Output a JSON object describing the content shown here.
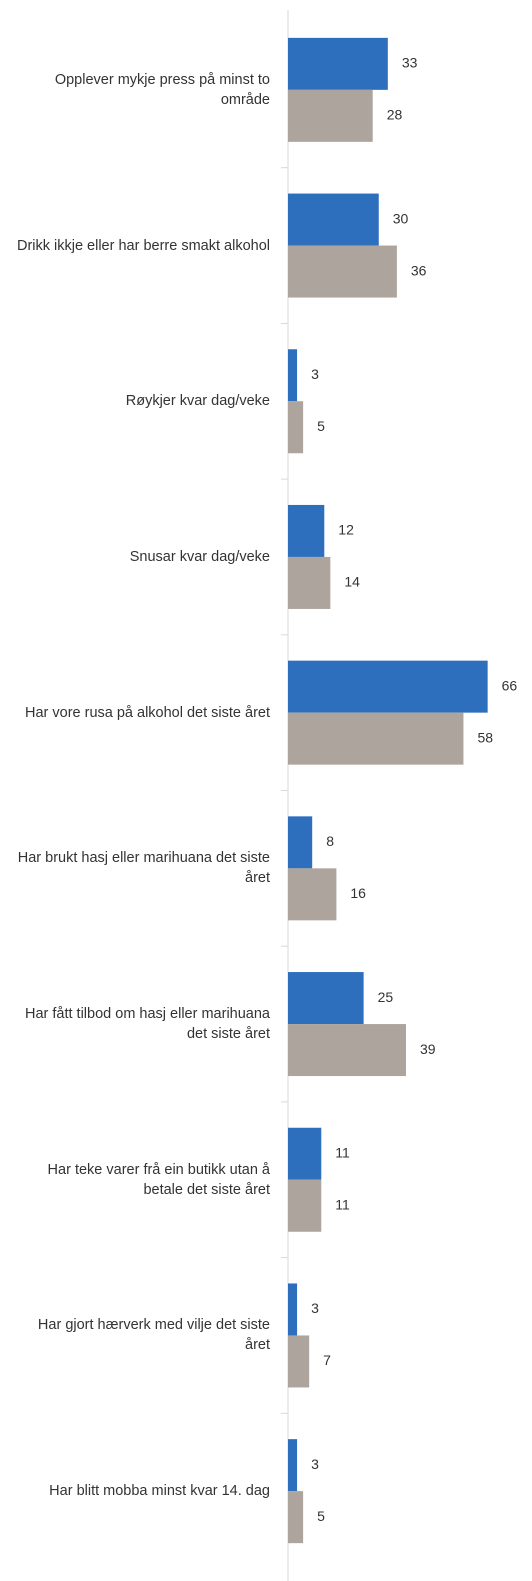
{
  "chart_data": {
    "type": "bar",
    "orientation": "horizontal",
    "categories": [
      "Opplever mykje press på minst to område",
      "Drikk ikkje eller har berre smakt alkohol",
      "Røykjer kvar dag/veke",
      "Snusar kvar dag/veke",
      "Har vore rusa på alkohol det siste året",
      "Har brukt hasj eller marihuana det siste året",
      "Har fått tilbod om hasj eller marihuana det siste året",
      "Har teke varer frå ein butikk utan å betale det siste året",
      "Har gjort hærverk med vilje det siste året",
      "Har blitt mobba minst kvar 14. dag"
    ],
    "series": [
      {
        "color": "#2e6fbd",
        "values": [
          33,
          30,
          3,
          12,
          66,
          8,
          25,
          11,
          3,
          3
        ]
      },
      {
        "color": "#aca49d",
        "values": [
          28,
          36,
          5,
          14,
          58,
          16,
          39,
          11,
          7,
          5
        ]
      }
    ],
    "xlim": [
      0,
      80
    ]
  }
}
